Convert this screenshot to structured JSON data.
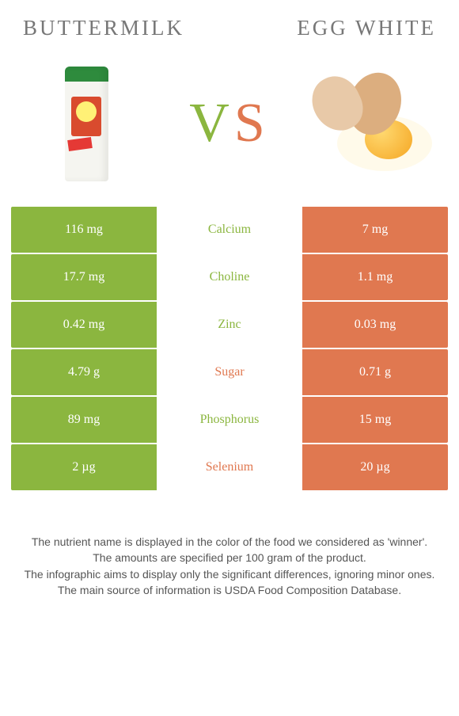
{
  "header": {
    "left_title": "Buttermilk",
    "right_title": "Egg white"
  },
  "vs": {
    "v": "V",
    "s": "S"
  },
  "colors": {
    "left": "#8bb63f",
    "right": "#e07850",
    "header_text": "#777777",
    "background": "#ffffff"
  },
  "nutrients": [
    {
      "name": "Calcium",
      "left": "116 mg",
      "right": "7 mg",
      "winner": "left"
    },
    {
      "name": "Choline",
      "left": "17.7 mg",
      "right": "1.1 mg",
      "winner": "left"
    },
    {
      "name": "Zinc",
      "left": "0.42 mg",
      "right": "0.03 mg",
      "winner": "left"
    },
    {
      "name": "Sugar",
      "left": "4.79 g",
      "right": "0.71 g",
      "winner": "right"
    },
    {
      "name": "Phosphorus",
      "left": "89 mg",
      "right": "15 mg",
      "winner": "left"
    },
    {
      "name": "Selenium",
      "left": "2 µg",
      "right": "20 µg",
      "winner": "right"
    }
  ],
  "footer": {
    "line1": "The nutrient name is displayed in the color of the food we considered as 'winner'.",
    "line2": "The amounts are specified per 100 gram of the product.",
    "line3": "The infographic aims to display only the significant differences, ignoring minor ones.",
    "line4": "The main source of information is USDA Food Composition Database."
  }
}
